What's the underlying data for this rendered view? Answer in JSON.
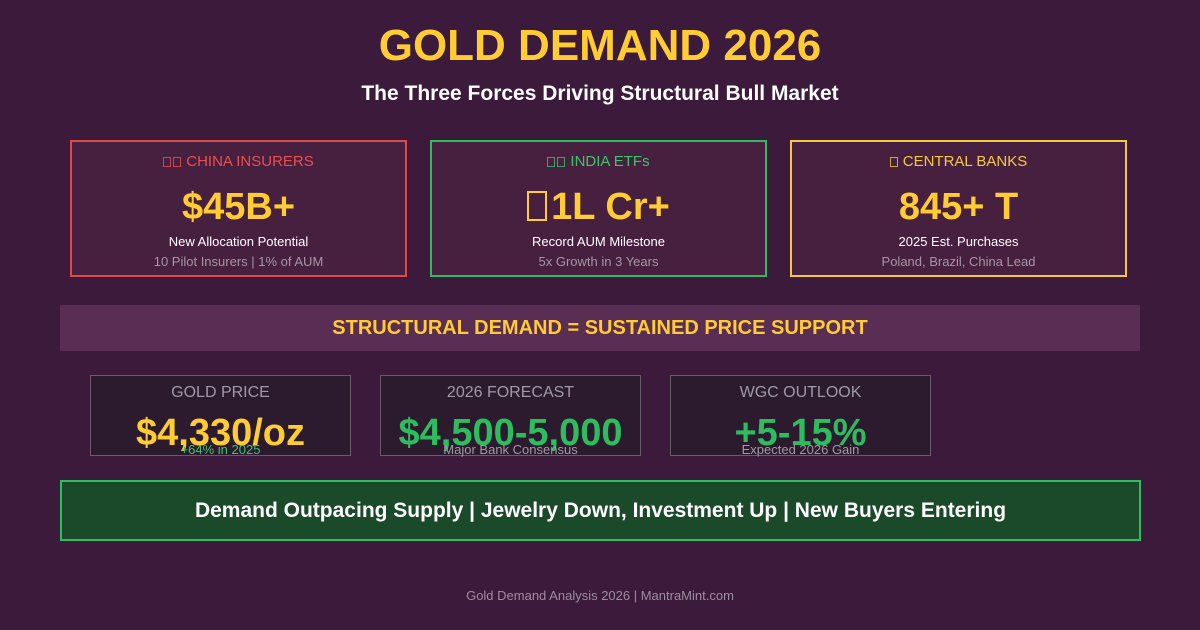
{
  "header": {
    "title": "GOLD DEMAND 2026",
    "subtitle": "The Three Forces Driving Structural Bull Market"
  },
  "cards": [
    {
      "label": "CHINA INSURERS",
      "icon": "china-flag-icon",
      "value": "$45B+",
      "description": "New Allocation Potential",
      "note": "10 Pilot Insurers | 1% of AUM",
      "color": "#e04848"
    },
    {
      "label": "INDIA ETFs",
      "icon": "india-flag-icon",
      "value": "1L Cr+",
      "value_prefix_icon": "rupee-icon",
      "description": "Record AUM Milestone",
      "note": "5x Growth in 3 Years",
      "color": "#2ebd5e"
    },
    {
      "label": "CENTRAL BANKS",
      "icon": "bank-icon",
      "value": "845+ T",
      "description": "2025 Est. Purchases",
      "note": "Poland, Brazil, China Lead",
      "color": "#f5c842"
    }
  ],
  "banner": {
    "text": "STRUCTURAL DEMAND = SUSTAINED PRICE SUPPORT"
  },
  "stats": [
    {
      "label": "GOLD PRICE",
      "value": "$4,330/oz",
      "note": "+64% in 2025",
      "value_color": "#ffcc33",
      "note_color": "#3cc46a"
    },
    {
      "label": "2026 FORECAST",
      "value": "$4,500-5,000",
      "note": "Major Bank Consensus",
      "value_color": "#2ebd5e",
      "note_color": "#a09aa6"
    },
    {
      "label": "WGC OUTLOOK",
      "value": "+5-15%",
      "note": "Expected 2026 Gain",
      "value_color": "#2ebd5e",
      "note_color": "#a09aa6"
    }
  ],
  "summary": {
    "text": "Demand Outpacing Supply | Jewelry Down, Investment Up | New Buyers Entering"
  },
  "footer": {
    "credit": "Gold Demand Analysis 2026 | MantraMint.com"
  },
  "colors": {
    "background": "#3b1a3c",
    "accent_gold": "#ffcc33",
    "accent_green": "#2ebd5e",
    "accent_red": "#e04848"
  }
}
